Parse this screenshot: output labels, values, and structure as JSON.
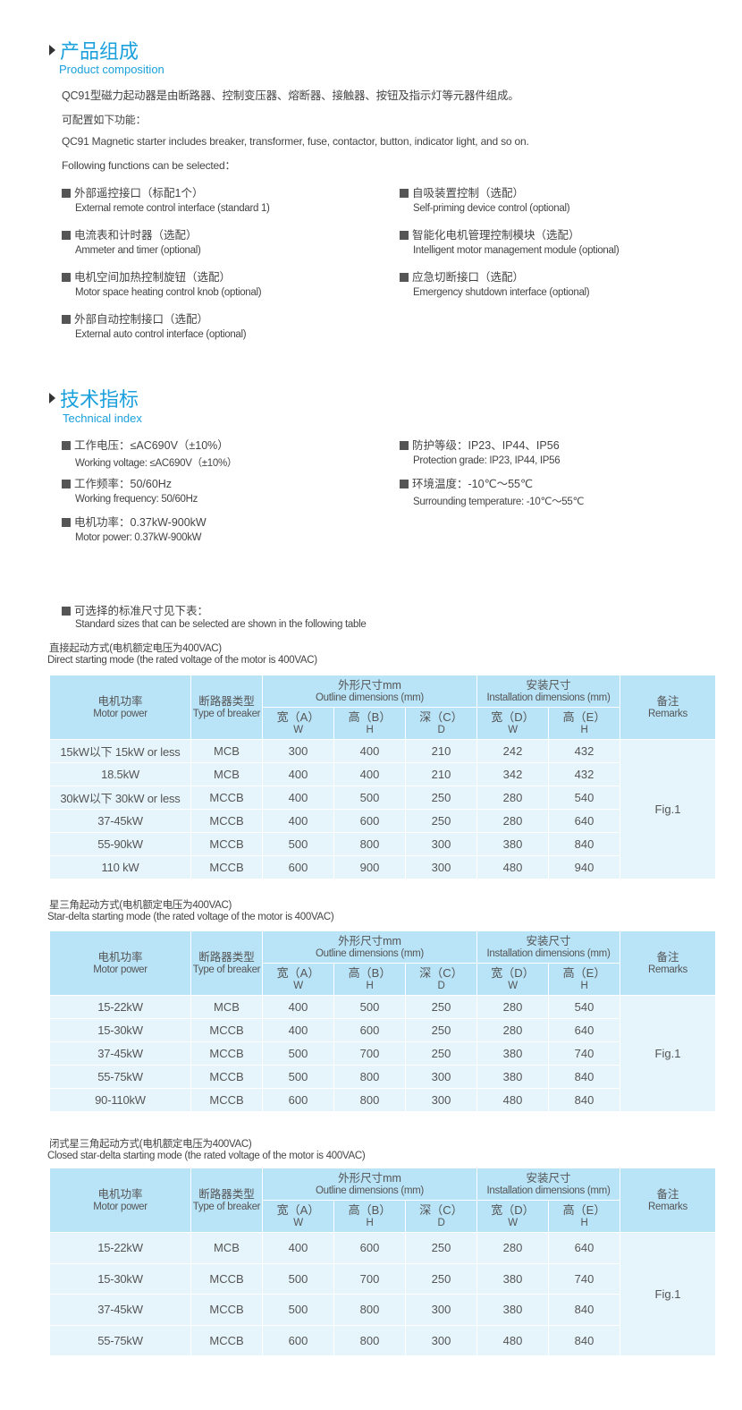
{
  "composition": {
    "title": "产品组成",
    "subtitle": "Product composition",
    "p1": "QC91型磁力起动器是由断路器、控制变压器、熔断器、接触器、按钮及指示灯等元器件组成。",
    "p2": "可配置如下功能：",
    "p3": "QC91 Magnetic starter includes breaker, transformer, fuse, contactor, button, indicator light, and so on.",
    "p4": "Following functions can be selected：",
    "features": [
      {
        "cn": "外部遥控接口（标配1个）",
        "en": "External remote control interface (standard 1)"
      },
      {
        "cn": "自吸装置控制（选配）",
        "en": "Self-priming device control (optional)"
      },
      {
        "cn": "电流表和计时器（选配）",
        "en": "Ammeter and timer (optional)"
      },
      {
        "cn": "智能化电机管理控制模块（选配）",
        "en": "Intelligent motor management module (optional)"
      },
      {
        "cn": "电机空间加热控制旋钮（选配）",
        "en": "Motor space heating control knob (optional)"
      },
      {
        "cn": "应急切断接口（选配）",
        "en": "Emergency shutdown interface (optional)"
      },
      {
        "cn": "外部自动控制接口（选配）",
        "en": "External auto control interface (optional)"
      }
    ]
  },
  "technical": {
    "title": "技术指标",
    "subtitle": "Technical index",
    "items": [
      {
        "cn": "工作电压：≤AC690V（±10%）",
        "en": "Working voltage: ≤AC690V（±10%）"
      },
      {
        "cn": "防护等级：IP23、IP44、IP56",
        "en": "Protection grade: IP23, IP44, IP56"
      },
      {
        "cn": "工作频率：50/60Hz",
        "en": "Working frequency: 50/60Hz"
      },
      {
        "cn": "环境温度：-10℃～55℃",
        "en": "Surrounding temperature: -10℃～55℃"
      },
      {
        "cn": "电机功率：0.37kW-900kW",
        "en": "Motor power: 0.37kW-900kW"
      }
    ],
    "note_cn": "可选择的标准尺寸见下表：",
    "note_en": "Standard sizes that can be selected are shown in the following table"
  },
  "table_header": {
    "motor_cn": "电机功率",
    "motor_en": "Motor power",
    "breaker_cn": "断路器类型",
    "breaker_en": "Type of breaker",
    "outline_cn": "外形尺寸mm",
    "outline_en": "Outline dimensions (mm)",
    "install_cn": "安装尺寸",
    "install_en": "Installation dimensions (mm)",
    "remarks_cn": "备注",
    "remarks_en": "Remarks",
    "subcols": [
      {
        "cn": "宽（A）",
        "en": "W"
      },
      {
        "cn": "高（B）",
        "en": "H"
      },
      {
        "cn": "深（C）",
        "en": "D"
      },
      {
        "cn": "宽（D）",
        "en": "W"
      },
      {
        "cn": "高（E）",
        "en": "H"
      }
    ]
  },
  "tables": [
    {
      "caption_cn": "直接起动方式(电机额定电压为400VAC)",
      "caption_en": "Direct starting mode (the rated voltage of the motor is 400VAC)",
      "remark": "Fig.1",
      "rows": [
        [
          "15kW以下 15kW or less",
          "MCB",
          "300",
          "400",
          "210",
          "242",
          "432"
        ],
        [
          "18.5kW",
          "MCB",
          "400",
          "400",
          "210",
          "342",
          "432"
        ],
        [
          "30kW以下 30kW or less",
          "MCCB",
          "400",
          "500",
          "250",
          "280",
          "540"
        ],
        [
          "37-45kW",
          "MCCB",
          "400",
          "600",
          "250",
          "280",
          "640"
        ],
        [
          "55-90kW",
          "MCCB",
          "500",
          "800",
          "300",
          "380",
          "840"
        ],
        [
          "110 kW",
          "MCCB",
          "600",
          "900",
          "300",
          "480",
          "940"
        ]
      ]
    },
    {
      "caption_cn": "星三角起动方式(电机额定电压为400VAC)",
      "caption_en": "Star-delta starting mode (the rated voltage of the motor is 400VAC)",
      "remark": "Fig.1",
      "rows": [
        [
          "15-22kW",
          "MCB",
          "400",
          "500",
          "250",
          "280",
          "540"
        ],
        [
          "15-30kW",
          "MCCB",
          "400",
          "600",
          "250",
          "280",
          "640"
        ],
        [
          "37-45kW",
          "MCCB",
          "500",
          "700",
          "250",
          "380",
          "740"
        ],
        [
          "55-75kW",
          "MCCB",
          "500",
          "800",
          "300",
          "380",
          "840"
        ],
        [
          "90-110kW",
          "MCCB",
          "600",
          "800",
          "300",
          "480",
          "840"
        ]
      ]
    },
    {
      "caption_cn": "闭式星三角起动方式(电机额定电压为400VAC)",
      "caption_en": "Closed star-delta starting mode (the rated voltage of the motor is 400VAC)",
      "remark": "Fig.1",
      "rows": [
        [
          "15-22kW",
          "MCB",
          "400",
          "600",
          "250",
          "280",
          "640"
        ],
        [
          "15-30kW",
          "MCCB",
          "500",
          "700",
          "250",
          "380",
          "740"
        ],
        [
          "37-45kW",
          "MCCB",
          "500",
          "800",
          "300",
          "380",
          "840"
        ],
        [
          "55-75kW",
          "MCCB",
          "600",
          "800",
          "300",
          "480",
          "840"
        ]
      ]
    }
  ]
}
